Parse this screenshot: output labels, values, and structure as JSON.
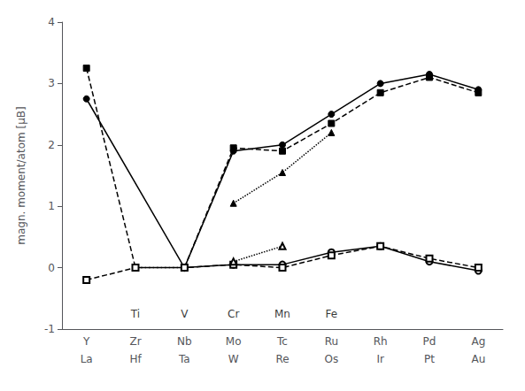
{
  "chart_data": {
    "type": "line",
    "ylabel": "magn. moment/atom [μB]",
    "categories": [
      "Y",
      "Zr",
      "Nb",
      "Mo",
      "Tc",
      "Ru",
      "Rh",
      "Pd",
      "Ag"
    ],
    "categories2": [
      "La",
      "Hf",
      "Ta",
      "W",
      "Re",
      "Os",
      "Ir",
      "Pt",
      "Au"
    ],
    "ylim": [
      -1.0,
      4.0
    ],
    "yticks": [
      -1,
      0,
      1,
      2,
      3,
      4
    ],
    "grid": false,
    "annotations": [
      {
        "text": "Ti",
        "x": "Zr",
        "y": -0.75
      },
      {
        "text": "V",
        "x": "Nb",
        "y": -0.75
      },
      {
        "text": "Cr",
        "x": "Mo",
        "y": -0.75
      },
      {
        "text": "Mn",
        "x": "Tc",
        "y": -0.75
      },
      {
        "text": "Fe",
        "x": "Ru",
        "y": -0.75
      }
    ],
    "series": [
      {
        "color": "#000000",
        "marker": "circle",
        "line_style": "solid",
        "values": [
          2.75,
          null,
          0.0,
          1.9,
          2.0,
          2.5,
          3.0,
          3.15,
          2.9
        ]
      },
      {
        "color": "#000000",
        "marker": "square",
        "line_style": "dashed",
        "values": [
          3.25,
          0.0,
          0.0,
          1.95,
          1.9,
          2.35,
          2.85,
          3.1,
          2.85
        ]
      },
      {
        "color": "#000000",
        "marker": "triangle",
        "line_style": "dotted",
        "values": [
          null,
          null,
          null,
          1.05,
          1.55,
          2.2,
          null,
          null,
          null
        ]
      },
      {
        "color": "#000000",
        "marker": "open_circle",
        "line_style": "solid",
        "values": [
          null,
          null,
          0.0,
          0.05,
          0.05,
          0.25,
          0.35,
          0.1,
          -0.05
        ]
      },
      {
        "color": "#000000",
        "marker": "open_square",
        "line_style": "dashed",
        "values": [
          -0.2,
          0.0,
          0.0,
          0.05,
          0.0,
          0.2,
          0.35,
          0.15,
          0.0
        ]
      },
      {
        "color": "#000000",
        "marker": "open_triangle",
        "line_style": "dotted",
        "values": [
          null,
          null,
          null,
          0.1,
          0.35,
          null,
          null,
          null,
          null
        ]
      }
    ]
  }
}
